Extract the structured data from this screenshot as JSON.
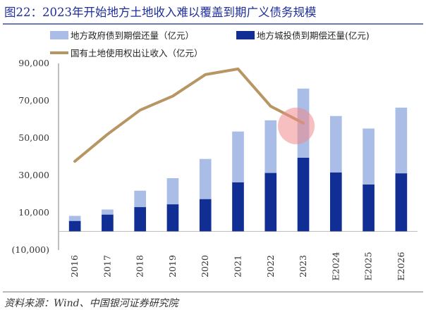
{
  "page": {
    "title": "图22：2023年开始地方土地收入难以覆盖到期广义债务规模",
    "source": "资料来源：Wind、中国银河证券研究院"
  },
  "colors": {
    "light_bar": "#a9bde6",
    "dark_bar": "#102e93",
    "line": "#b79664",
    "highlight": "#f08a8a",
    "negative_tick": "#c00000",
    "title": "#1f2f9a"
  },
  "chart_data": {
    "type": "bar",
    "categories": [
      "2016",
      "2017",
      "2018",
      "2019",
      "2020",
      "2021",
      "2022",
      "2023",
      "E2024",
      "E2025",
      "E2026"
    ],
    "series": [
      {
        "name": "地方政府债到期偿还量（亿元）",
        "kind": "bar",
        "values": [
          2700,
          2700,
          8800,
          14000,
          21500,
          27200,
          28200,
          37000,
          30200,
          30000,
          35200
        ]
      },
      {
        "name": "地方城投债到期偿还量(亿元)",
        "kind": "bar",
        "values": [
          5600,
          9000,
          13000,
          14500,
          17300,
          26300,
          31300,
          39500,
          31600,
          25100,
          31100
        ]
      },
      {
        "name": "国有土地使用权出让收入（亿元）",
        "kind": "line",
        "values": [
          37500,
          52000,
          65000,
          72500,
          84000,
          87000,
          67000,
          58000,
          null,
          null,
          null
        ]
      }
    ],
    "stacked": true,
    "ylim": [
      -10000,
      90000
    ],
    "yticks": [
      "(10,000)",
      "10,000",
      "30,000",
      "50,000",
      "70,000",
      "90,000"
    ],
    "ytick_values": [
      -10000,
      10000,
      30000,
      50000,
      70000,
      90000
    ],
    "grid": false,
    "legend": "top",
    "annotation": {
      "type": "circle",
      "category": "2023",
      "value": 58000
    }
  }
}
